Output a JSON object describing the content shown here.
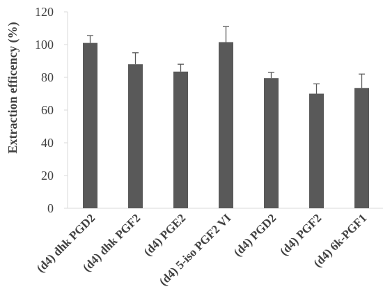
{
  "chart_data": {
    "type": "bar",
    "categories": [
      "(d4) dhk PGD2",
      "(d4) dhk PGF2",
      "(d4) PGE2",
      "(d4) 5-iso PGF2 VI",
      "(d4) PGD2",
      "(d4) PGF2",
      "(d4) 6k-PGF1"
    ],
    "series": [
      {
        "values": [
          101,
          88,
          83.5,
          101.5,
          79.5,
          70,
          73.5
        ],
        "error_plus": [
          4.5,
          7,
          4.5,
          9.5,
          3.5,
          6,
          8.5
        ]
      }
    ],
    "title": "",
    "xlabel": "",
    "ylabel": "Extraction efficency (%)",
    "ylim": [
      0,
      120
    ],
    "yticks": [
      0,
      20,
      40,
      60,
      80,
      100,
      120
    ],
    "grid": false,
    "legend": "none",
    "bar_color": "#595959",
    "axis_color": "#d9d9d9",
    "text_color": "#404040"
  }
}
